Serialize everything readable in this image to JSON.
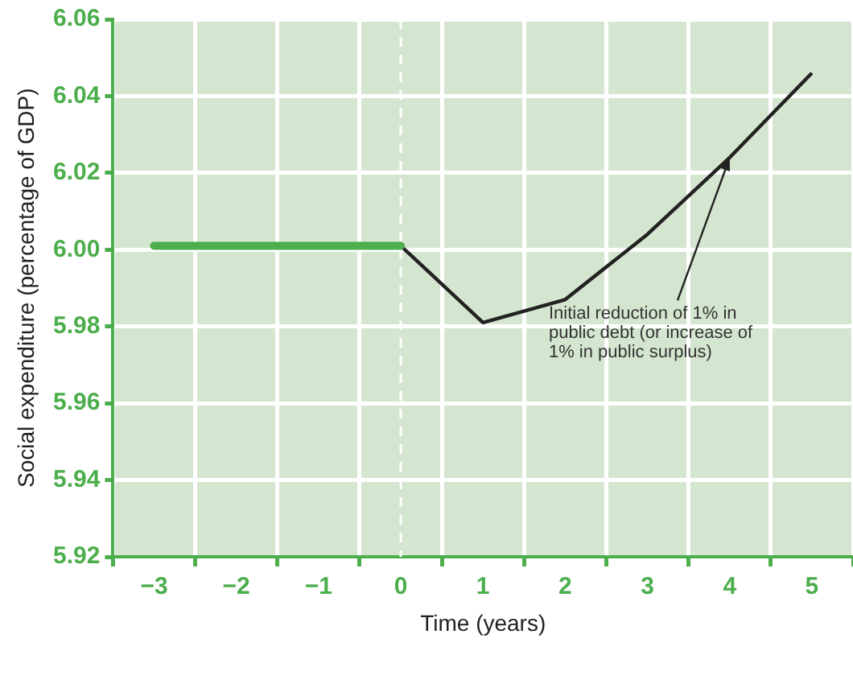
{
  "chart_data": {
    "type": "line",
    "xlabel": "Time (years)",
    "ylabel": "Social expenditure (percentage of GDP)",
    "categories": [
      "−3",
      "−2",
      "−1",
      "0",
      "1",
      "2",
      "3",
      "4",
      "5"
    ],
    "series": [
      {
        "color": "#4cae4c",
        "values": [
          6.001,
          6.001,
          6.001,
          6.001,
          null,
          null,
          null,
          null,
          null
        ]
      },
      {
        "color": "#222222",
        "values": [
          null,
          null,
          null,
          6.001,
          5.981,
          5.987,
          6.004,
          6.024,
          6.046
        ]
      }
    ],
    "ylim": [
      5.92,
      6.06
    ],
    "yticks": [
      5.92,
      5.94,
      5.96,
      5.98,
      {
        "value": 6,
        "label": "6.00"
      },
      6.02,
      6.04,
      6.06
    ],
    "ref_lines": [
      {
        "axis": "x",
        "value": "0",
        "color": "#ffffff",
        "line_style": "dashed"
      }
    ],
    "annotations": [
      {
        "text": "Initial reduction of 1% in public debt (or increase of 1% in public surplus)",
        "x": "4",
        "y": 6.024
      }
    ],
    "grid": true,
    "legend": false,
    "marker": "none"
  }
}
